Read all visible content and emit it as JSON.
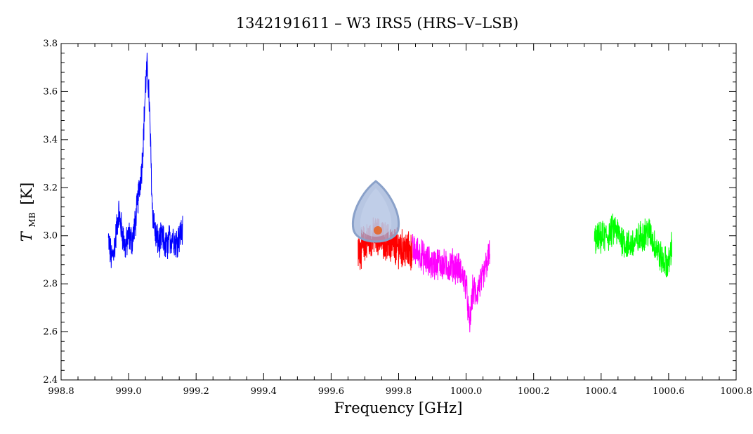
{
  "chart_data": {
    "type": "line",
    "title": "1342191611 – W3 IRS5 (HRS–V–LSB)",
    "xlabel": "Frequency [GHz]",
    "ylabel_main": "T",
    "ylabel_sub": "MB",
    "ylabel_unit": "[K]",
    "xlim": [
      998.8,
      1000.8
    ],
    "ylim": [
      2.4,
      3.8
    ],
    "x_ticks": [
      "998.8",
      "999.0",
      "999.2",
      "999.4",
      "999.6",
      "999.8",
      "1000.0",
      "1000.2",
      "1000.4",
      "1000.6",
      "1000.8"
    ],
    "y_ticks": [
      "2.4",
      "2.6",
      "2.8",
      "3.0",
      "3.2",
      "3.4",
      "3.6",
      "3.8"
    ],
    "grid": false,
    "series": [
      {
        "color": "#0000ff",
        "x": [
          998.94,
          998.95,
          998.96,
          998.97,
          998.98,
          998.99,
          999.0,
          999.01,
          999.02,
          999.03,
          999.04,
          999.045,
          999.05,
          999.055,
          999.06,
          999.065,
          999.07,
          999.08,
          999.09,
          999.1,
          999.11,
          999.12,
          999.13,
          999.14,
          999.15,
          999.16
        ],
        "y": [
          2.98,
          2.9,
          2.97,
          3.1,
          3.02,
          2.95,
          3.0,
          2.98,
          3.05,
          3.18,
          3.3,
          3.45,
          3.62,
          3.7,
          3.6,
          3.38,
          3.12,
          3.0,
          2.97,
          2.99,
          2.95,
          2.98,
          3.0,
          2.97,
          3.0,
          3.02
        ],
        "noise": 0.06
      },
      {
        "color": "#ff0000",
        "x": [
          999.68,
          999.7,
          999.72,
          999.74,
          999.76,
          999.78,
          999.8,
          999.82,
          999.84
        ],
        "y": [
          2.93,
          2.97,
          2.99,
          3.0,
          2.98,
          2.96,
          2.95,
          2.94,
          2.93
        ],
        "noise": 0.07
      },
      {
        "color": "#ff00ff",
        "x": [
          999.84,
          999.86,
          999.88,
          999.9,
          999.92,
          999.94,
          999.96,
          999.98,
          1000.0,
          1000.01,
          1000.02,
          1000.03,
          1000.04,
          1000.05,
          1000.06,
          1000.07
        ],
        "y": [
          2.94,
          2.93,
          2.9,
          2.88,
          2.89,
          2.87,
          2.88,
          2.86,
          2.8,
          2.62,
          2.78,
          2.75,
          2.8,
          2.82,
          2.88,
          2.93
        ],
        "noise": 0.06
      },
      {
        "color": "#00ff00",
        "x": [
          1000.38,
          1000.4,
          1000.42,
          1000.44,
          1000.46,
          1000.48,
          1000.5,
          1000.52,
          1000.54,
          1000.56,
          1000.58,
          1000.6,
          1000.61
        ],
        "y": [
          2.98,
          2.99,
          3.0,
          3.03,
          2.99,
          2.96,
          2.97,
          3.0,
          3.02,
          2.96,
          2.9,
          2.88,
          2.97
        ],
        "noise": 0.06
      }
    ]
  },
  "colors": {
    "axis": "#000000",
    "background": "#ffffff"
  },
  "icons": {
    "cursor": "teardrop-cursor-icon"
  }
}
